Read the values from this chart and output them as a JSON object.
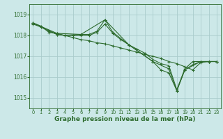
{
  "background_color": "#cce8e8",
  "grid_color": "#aacccc",
  "line_color": "#2d6b2d",
  "marker_color": "#2d6b2d",
  "xlabel": "Graphe pression niveau de la mer (hPa)",
  "xlabel_fontsize": 6.5,
  "xlabel_color": "#2d6b2d",
  "ytick_fontsize": 5.5,
  "xtick_fontsize": 4.8,
  "yticks": [
    1015,
    1016,
    1017,
    1018,
    1019
  ],
  "xticks": [
    0,
    1,
    2,
    3,
    4,
    5,
    6,
    7,
    8,
    9,
    10,
    11,
    12,
    13,
    14,
    15,
    16,
    17,
    18,
    19,
    20,
    21,
    22,
    23
  ],
  "ylim": [
    1014.5,
    1019.5
  ],
  "xlim": [
    -0.5,
    23.5
  ],
  "series": [
    {
      "x": [
        0,
        1,
        2,
        3,
        4,
        5,
        6,
        7,
        8,
        9,
        10,
        11,
        12,
        13,
        14,
        15,
        16,
        17,
        18,
        19,
        20,
        21,
        22,
        23
      ],
      "y": [
        1018.6,
        1018.45,
        1018.15,
        1018.1,
        1018.0,
        1018.0,
        1018.0,
        1018.0,
        1018.15,
        1018.55,
        1018.1,
        1017.8,
        1017.55,
        1017.35,
        1017.15,
        1016.85,
        1016.65,
        1016.55,
        1015.4,
        1016.4,
        1016.75,
        1016.75,
        1016.75,
        1016.75
      ]
    },
    {
      "x": [
        0,
        1,
        2,
        3,
        4,
        5,
        6,
        7,
        8,
        9,
        10,
        11,
        12,
        13,
        14,
        15,
        16,
        17,
        18,
        19,
        20,
        21,
        22,
        23
      ],
      "y": [
        1018.55,
        1018.4,
        1018.2,
        1018.05,
        1018.0,
        1017.9,
        1017.8,
        1017.75,
        1017.65,
        1017.6,
        1017.5,
        1017.4,
        1017.3,
        1017.2,
        1017.1,
        1017.0,
        1016.9,
        1016.75,
        1016.65,
        1016.5,
        1016.35,
        1016.7,
        1016.75,
        1016.75
      ]
    },
    {
      "x": [
        0,
        3,
        6,
        7,
        8,
        9,
        10,
        12,
        15,
        16,
        17,
        18,
        19,
        20,
        21,
        22,
        23
      ],
      "y": [
        1018.6,
        1018.1,
        1018.05,
        1018.05,
        1018.2,
        1018.75,
        1018.15,
        1017.55,
        1016.75,
        1016.35,
        1016.2,
        1015.35,
        1016.35,
        1016.6,
        1016.75,
        1016.75,
        1016.75
      ]
    },
    {
      "x": [
        0,
        3,
        4,
        6,
        9,
        12,
        15,
        17,
        18,
        19,
        21,
        22,
        23
      ],
      "y": [
        1018.6,
        1018.05,
        1018.0,
        1018.05,
        1018.75,
        1017.55,
        1016.75,
        1016.4,
        1015.35,
        1016.35,
        1016.75,
        1016.75,
        1016.75
      ]
    }
  ]
}
